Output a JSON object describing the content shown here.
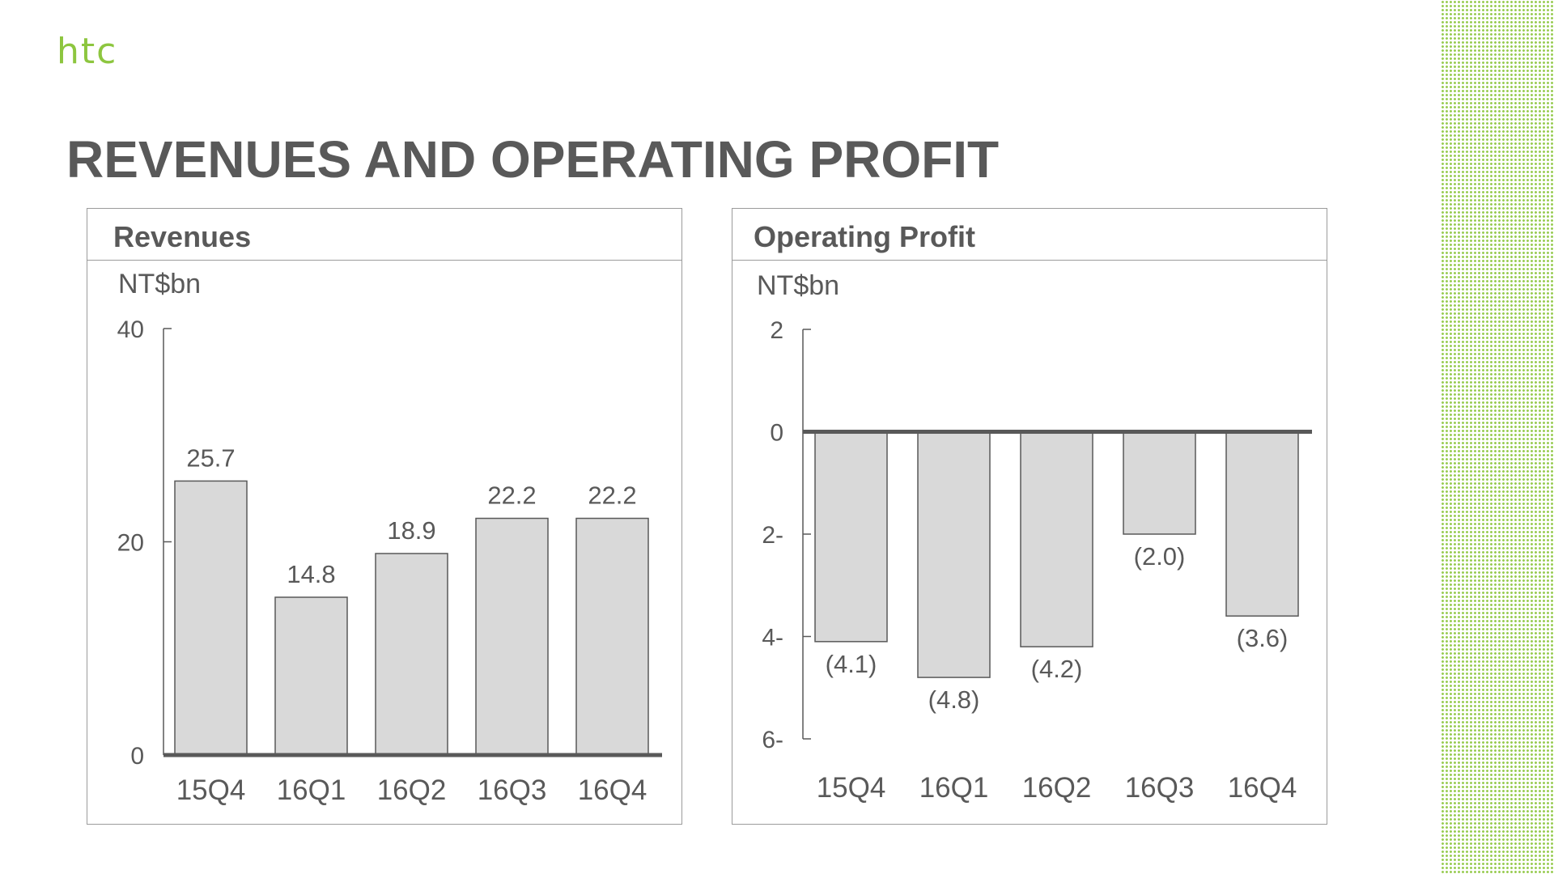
{
  "logo": {
    "text": "htc"
  },
  "header": {
    "title": "REVENUES AND OPERATING PROFIT"
  },
  "colors": {
    "bar_fill": "#d9d9d9",
    "bar_stroke": "#595959",
    "text": "#595959",
    "axis": "#595959",
    "brand": "#8dc63f",
    "panel_border": "#9b9b9b"
  },
  "panels": [
    {
      "title": "Revenues"
    },
    {
      "title": "Operating Profit"
    }
  ],
  "chart_data": [
    {
      "type": "bar",
      "title": "Revenues",
      "unit_label": "NT$bn",
      "categories": [
        "15Q4",
        "16Q1",
        "16Q2",
        "16Q3",
        "16Q4"
      ],
      "values": [
        25.7,
        14.8,
        18.9,
        22.2,
        22.2
      ],
      "value_labels": [
        "25.7",
        "14.8",
        "18.9",
        "22.2",
        "22.2"
      ],
      "ylim": [
        0,
        40
      ],
      "yticks": [
        0,
        20,
        40
      ],
      "ytick_labels": [
        "0",
        "20",
        "40"
      ],
      "grid": false,
      "legend": "none"
    },
    {
      "type": "bar",
      "title": "Operating Profit",
      "unit_label": "NT$bn",
      "categories": [
        "15Q4",
        "16Q1",
        "16Q2",
        "16Q3",
        "16Q4"
      ],
      "values": [
        -4.1,
        -4.8,
        -4.2,
        -2.0,
        -3.6
      ],
      "value_labels": [
        "(4.1)",
        "(4.8)",
        "(4.2)",
        "(2.0)",
        "(3.6)"
      ],
      "ylim": [
        -6,
        2
      ],
      "yticks": [
        2,
        0,
        -2,
        -4,
        -6
      ],
      "ytick_labels": [
        "2",
        "0",
        "2-",
        "4-",
        "6-"
      ],
      "grid": false,
      "legend": "none"
    }
  ]
}
